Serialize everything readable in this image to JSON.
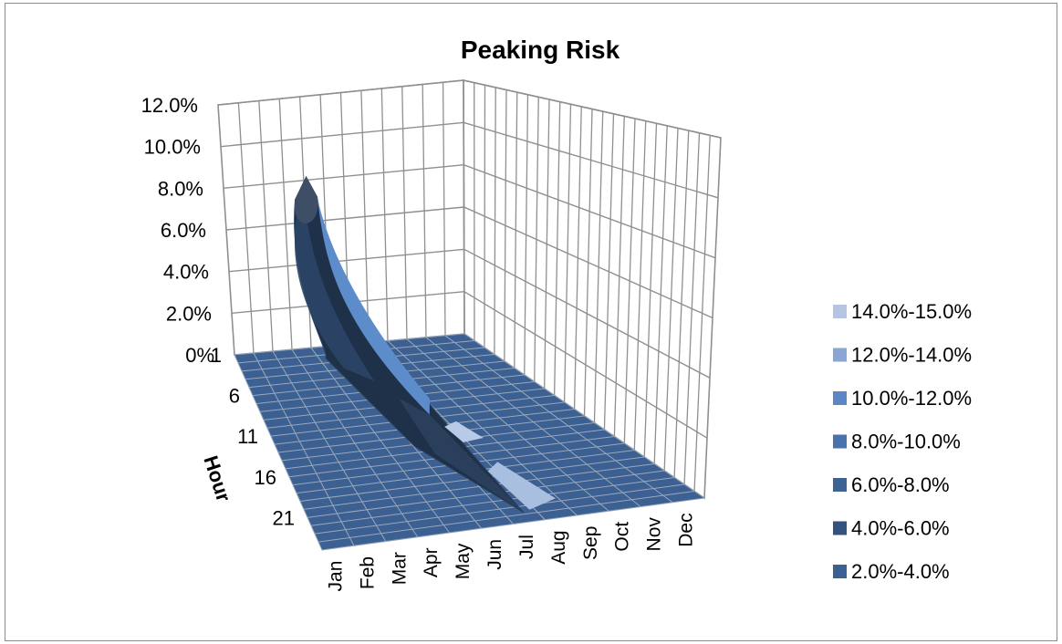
{
  "chart_data": {
    "type": "surface",
    "title": "Peaking Risk",
    "ylabel": "Hour",
    "xlabel": "",
    "months": [
      "Jan",
      "Feb",
      "Mar",
      "Apr",
      "May",
      "Jun",
      "Jul",
      "Aug",
      "Sep",
      "Oct",
      "Nov",
      "Dec"
    ],
    "hour_ticks": [
      "1",
      "6",
      "11",
      "16",
      "21"
    ],
    "z_ticks": [
      "0%",
      "2.0%",
      "4.0%",
      "6.0%",
      "8.0%",
      "10.0%",
      "12.0%"
    ],
    "zlim": [
      0,
      12
    ],
    "grid": true,
    "legend_position": "right",
    "legend": [
      {
        "label": "14.0%-15.0%",
        "color": "#b4c4e2"
      },
      {
        "label": "12.0%-14.0%",
        "color": "#8aa6d4"
      },
      {
        "label": "10.0%-12.0%",
        "color": "#5c86c4"
      },
      {
        "label": "8.0%-10.0%",
        "color": "#4a72ac"
      },
      {
        "label": "6.0%-8.0%",
        "color": "#3f6294"
      },
      {
        "label": "4.0%-6.0%",
        "color": "#34527c"
      },
      {
        "label": "2.0%-4.0%",
        "color": "#3b6091"
      }
    ],
    "peak": {
      "month": "Apr",
      "hour": 1,
      "value": 8.5
    }
  }
}
